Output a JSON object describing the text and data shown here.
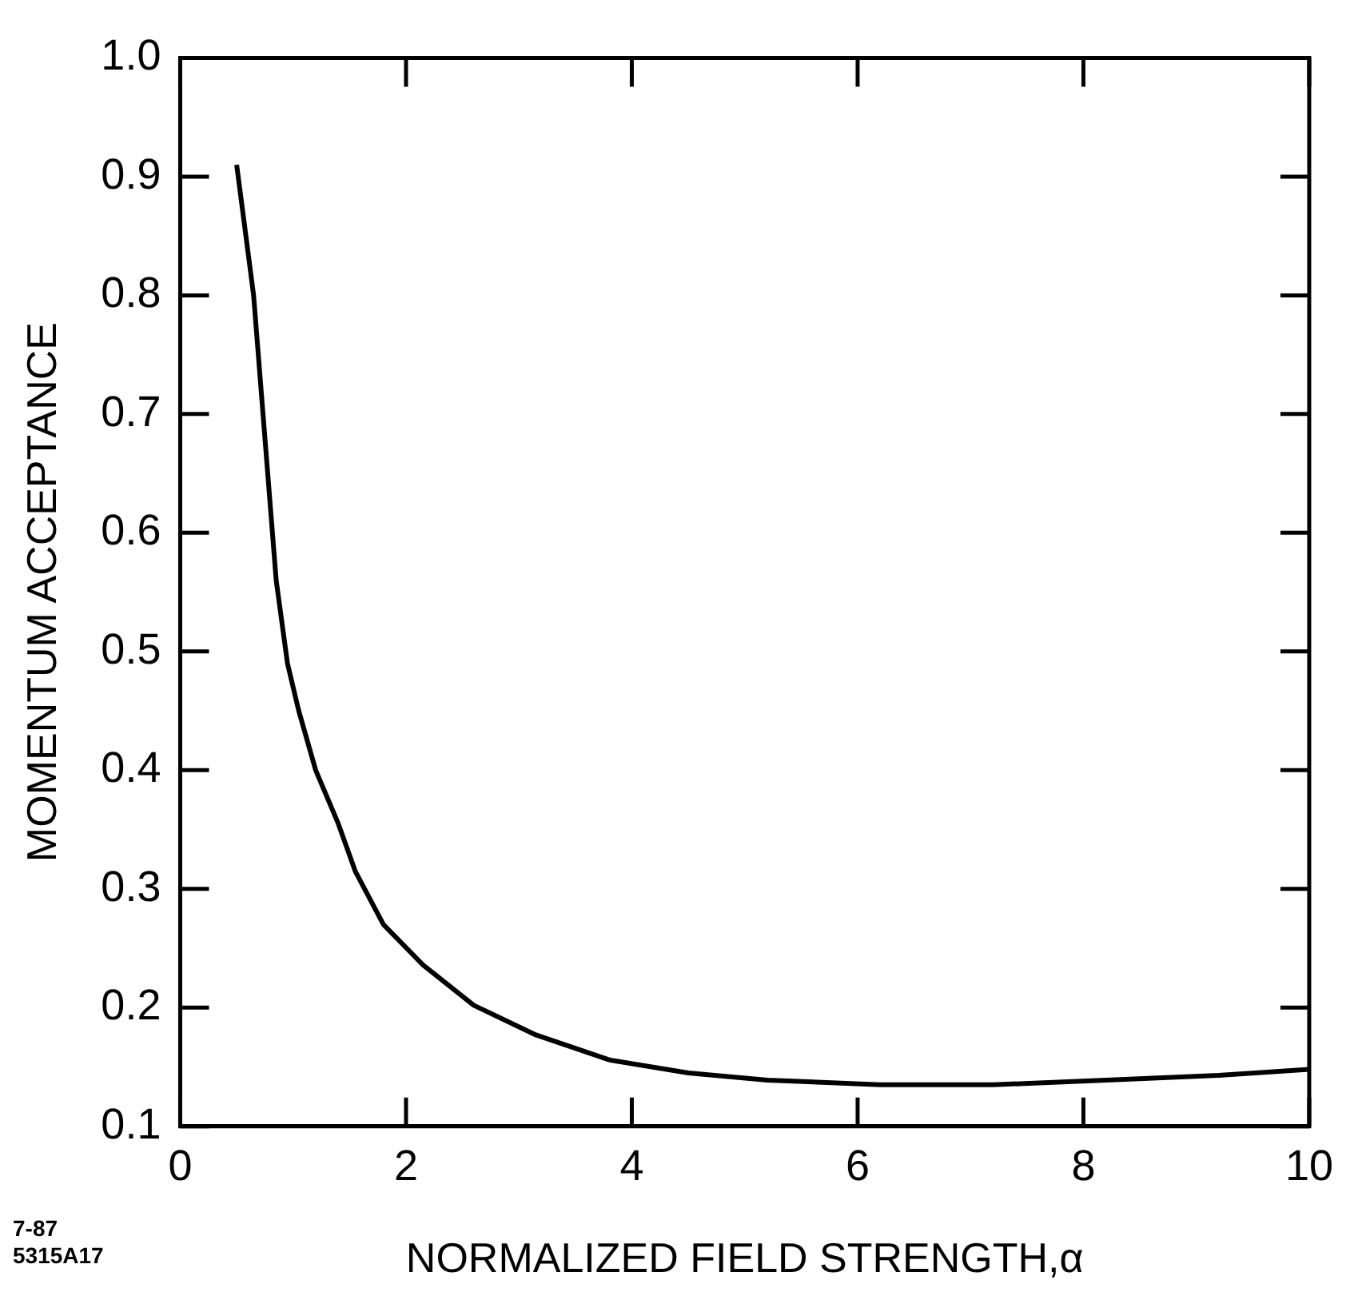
{
  "chart_data": {
    "type": "line",
    "xlabel": "NORMALIZED FIELD STRENGTH,α",
    "ylabel": "MOMENTUM ACCEPTANCE",
    "annotations": [
      "7-87",
      "5315A17"
    ],
    "x": [
      0.5,
      0.65,
      0.75,
      0.85,
      0.95,
      1.05,
      1.2,
      1.4,
      1.55,
      1.8,
      2.15,
      2.6,
      3.15,
      3.8,
      4.5,
      5.2,
      6.2,
      7.2,
      8.2,
      9.2,
      10
    ],
    "series": [
      {
        "color": "#000000",
        "values": [
          0.91,
          0.8,
          0.68,
          0.56,
          0.49,
          0.45,
          0.4,
          0.355,
          0.315,
          0.27,
          0.236,
          0.202,
          0.177,
          0.156,
          0.145,
          0.139,
          0.135,
          0.135,
          0.139,
          0.143,
          0.148
        ]
      }
    ],
    "xlim": [
      0,
      10
    ],
    "xticks": [
      0,
      2,
      4,
      6,
      8,
      10
    ],
    "ylim": [
      0.1,
      1.0
    ],
    "yticks": [
      {
        "value": 0.1,
        "label": "0.1"
      },
      {
        "value": 0.2,
        "label": "0.2"
      },
      {
        "value": 0.3,
        "label": "0.3"
      },
      {
        "value": 0.4,
        "label": "0.4"
      },
      {
        "value": 0.5,
        "label": "0.5"
      },
      {
        "value": 0.6,
        "label": "0.6"
      },
      {
        "value": 0.7,
        "label": "0.7"
      },
      {
        "value": 0.8,
        "label": "0.8"
      },
      {
        "value": 0.9,
        "label": "0.9"
      },
      {
        "value": 1.0,
        "label": "1.0"
      }
    ],
    "grid": false,
    "legend": false,
    "marker": "none",
    "line_style": "solid"
  }
}
